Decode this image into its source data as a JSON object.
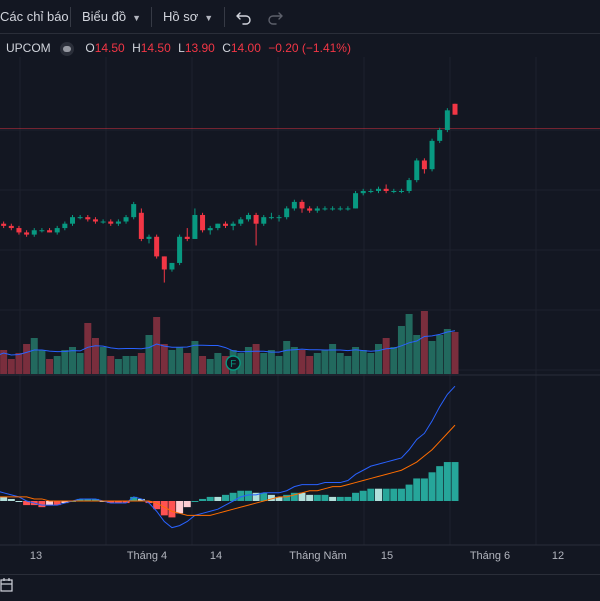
{
  "toolbar": {
    "indicators_label": "Các chỉ báo",
    "chart_label": "Biểu đồ",
    "profile_label": "Hồ sơ"
  },
  "legend": {
    "exchange": "UPCOM",
    "open_key": "O",
    "open": "14.50",
    "high_key": "H",
    "high": "14.50",
    "low_key": "L",
    "low": "13.90",
    "close_key": "C",
    "close": "14.00",
    "change": "−0.20 (−1.41%)"
  },
  "colors": {
    "background": "#131722",
    "up": "#089981",
    "down": "#f23645",
    "volume_up": "#22695e",
    "volume_down": "#7a2e3d",
    "macd_line": "#2962ff",
    "signal_line": "#ff6d00",
    "hist_up": "#26a69a",
    "hist_up_light": "#b2dfdb",
    "hist_down": "#ff5252",
    "hist_down_light": "#ffcdd2"
  },
  "x_axis_labels": [
    "13",
    "Tháng 4",
    "14",
    "Tháng Năm",
    "15",
    "Tháng 6",
    "12"
  ],
  "event_marker": "F",
  "chart_data": {
    "type": "candlestick",
    "candles": [
      [
        14.45,
        14.45,
        14.3,
        14.35
      ],
      [
        14.35,
        14.4,
        14.25,
        14.3
      ],
      [
        14.3,
        14.35,
        14.2,
        14.25
      ],
      [
        14.25,
        14.3,
        14.1,
        14.15
      ],
      [
        14.15,
        14.2,
        14.05,
        14.1
      ],
      [
        14.1,
        14.25,
        14.05,
        14.2
      ],
      [
        14.2,
        14.25,
        14.15,
        14.2
      ],
      [
        14.2,
        14.25,
        14.15,
        14.15
      ],
      [
        14.15,
        14.3,
        14.1,
        14.25
      ],
      [
        14.25,
        14.4,
        14.2,
        14.35
      ],
      [
        14.35,
        14.55,
        14.3,
        14.5
      ],
      [
        14.5,
        14.55,
        14.45,
        14.5
      ],
      [
        14.5,
        14.55,
        14.4,
        14.45
      ],
      [
        14.45,
        14.5,
        14.35,
        14.4
      ],
      [
        14.4,
        14.45,
        14.35,
        14.4
      ],
      [
        14.4,
        14.45,
        14.3,
        14.35
      ],
      [
        14.35,
        14.45,
        14.3,
        14.4
      ],
      [
        14.4,
        14.55,
        14.35,
        14.5
      ],
      [
        14.5,
        14.85,
        14.45,
        14.8
      ],
      [
        14.6,
        14.7,
        13.95,
        14.0
      ],
      [
        14.0,
        14.1,
        13.9,
        14.05
      ],
      [
        14.05,
        14.1,
        13.55,
        13.6
      ],
      [
        13.6,
        13.6,
        13.0,
        13.3
      ],
      [
        13.3,
        13.45,
        13.25,
        13.45
      ],
      [
        13.45,
        14.1,
        13.4,
        14.05
      ],
      [
        14.05,
        14.25,
        13.95,
        14.0
      ],
      [
        14.0,
        14.7,
        14.0,
        14.55
      ],
      [
        14.55,
        14.6,
        14.15,
        14.2
      ],
      [
        14.2,
        14.3,
        14.1,
        14.25
      ],
      [
        14.25,
        14.35,
        14.2,
        14.35
      ],
      [
        14.35,
        14.4,
        14.25,
        14.3
      ],
      [
        14.3,
        14.4,
        14.2,
        14.35
      ],
      [
        14.35,
        14.5,
        14.3,
        14.45
      ],
      [
        14.45,
        14.6,
        14.4,
        14.55
      ],
      [
        14.55,
        14.6,
        13.85,
        14.35
      ],
      [
        14.35,
        14.55,
        14.3,
        14.5
      ],
      [
        14.5,
        14.6,
        14.45,
        14.5
      ],
      [
        14.5,
        14.55,
        14.4,
        14.5
      ],
      [
        14.5,
        14.75,
        14.45,
        14.7
      ],
      [
        14.7,
        14.9,
        14.65,
        14.85
      ],
      [
        14.85,
        14.9,
        14.6,
        14.7
      ],
      [
        14.7,
        14.75,
        14.6,
        14.65
      ],
      [
        14.65,
        14.75,
        14.6,
        14.7
      ],
      [
        14.7,
        14.75,
        14.65,
        14.7
      ],
      [
        14.7,
        14.75,
        14.65,
        14.7
      ],
      [
        14.7,
        14.75,
        14.65,
        14.7
      ],
      [
        14.7,
        14.75,
        14.65,
        14.7
      ],
      [
        14.7,
        15.1,
        14.7,
        15.05
      ],
      [
        15.05,
        15.15,
        15.0,
        15.1
      ],
      [
        15.1,
        15.15,
        15.05,
        15.1
      ],
      [
        15.1,
        15.2,
        15.05,
        15.15
      ],
      [
        15.15,
        15.25,
        15.05,
        15.1
      ],
      [
        15.1,
        15.15,
        15.05,
        15.1
      ],
      [
        15.1,
        15.15,
        15.05,
        15.1
      ],
      [
        15.1,
        15.4,
        15.05,
        15.35
      ],
      [
        15.35,
        15.85,
        15.3,
        15.8
      ],
      [
        15.8,
        15.85,
        15.5,
        15.6
      ],
      [
        15.6,
        16.3,
        15.55,
        16.25
      ],
      [
        16.25,
        16.55,
        16.2,
        16.5
      ],
      [
        16.5,
        17.0,
        16.45,
        16.95
      ],
      [
        17.1,
        17.1,
        16.85,
        16.85
      ]
    ],
    "volume": [
      6,
      8,
      5,
      7,
      10,
      12,
      8,
      5,
      6,
      8,
      9,
      7,
      17,
      12,
      9,
      6,
      5,
      6,
      6,
      7,
      13,
      19,
      10,
      8,
      9,
      7,
      11,
      6,
      5,
      7,
      6,
      8,
      7,
      9,
      10,
      7,
      8,
      6,
      11,
      9,
      8,
      6,
      7,
      8,
      10,
      7,
      6,
      9,
      8,
      7,
      10,
      12,
      9,
      16,
      20,
      13,
      21,
      11,
      13,
      15,
      14
    ],
    "macd": [
      0.05,
      0.04,
      0.03,
      0.02,
      0.0,
      -0.01,
      -0.02,
      -0.02,
      -0.02,
      -0.01,
      0.0,
      0.01,
      0.01,
      0.01,
      0.0,
      -0.01,
      -0.01,
      -0.01,
      0.02,
      0.01,
      -0.01,
      -0.05,
      -0.1,
      -0.13,
      -0.12,
      -0.1,
      -0.07,
      -0.06,
      -0.05,
      -0.04,
      -0.02,
      0.0,
      0.02,
      0.03,
      0.03,
      0.04,
      0.04,
      0.04,
      0.05,
      0.07,
      0.08,
      0.08,
      0.08,
      0.09,
      0.09,
      0.09,
      0.1,
      0.13,
      0.15,
      0.17,
      0.18,
      0.19,
      0.2,
      0.21,
      0.25,
      0.3,
      0.33,
      0.39,
      0.46,
      0.52,
      0.56
    ],
    "signal": [
      0.02,
      0.02,
      0.02,
      0.02,
      0.02,
      0.01,
      0.01,
      0.0,
      0.0,
      0.0,
      0.0,
      0.0,
      0.0,
      0.0,
      0.0,
      0.0,
      0.0,
      0.0,
      0.0,
      0.0,
      0.0,
      -0.01,
      -0.03,
      -0.05,
      -0.06,
      -0.07,
      -0.07,
      -0.07,
      -0.07,
      -0.06,
      -0.05,
      -0.04,
      -0.03,
      -0.02,
      -0.01,
      0.0,
      0.01,
      0.02,
      0.02,
      0.03,
      0.04,
      0.05,
      0.05,
      0.06,
      0.07,
      0.07,
      0.08,
      0.09,
      0.1,
      0.11,
      0.12,
      0.13,
      0.14,
      0.15,
      0.17,
      0.19,
      0.22,
      0.25,
      0.29,
      0.33,
      0.37
    ],
    "y_range": [
      12.6,
      17.6
    ]
  }
}
